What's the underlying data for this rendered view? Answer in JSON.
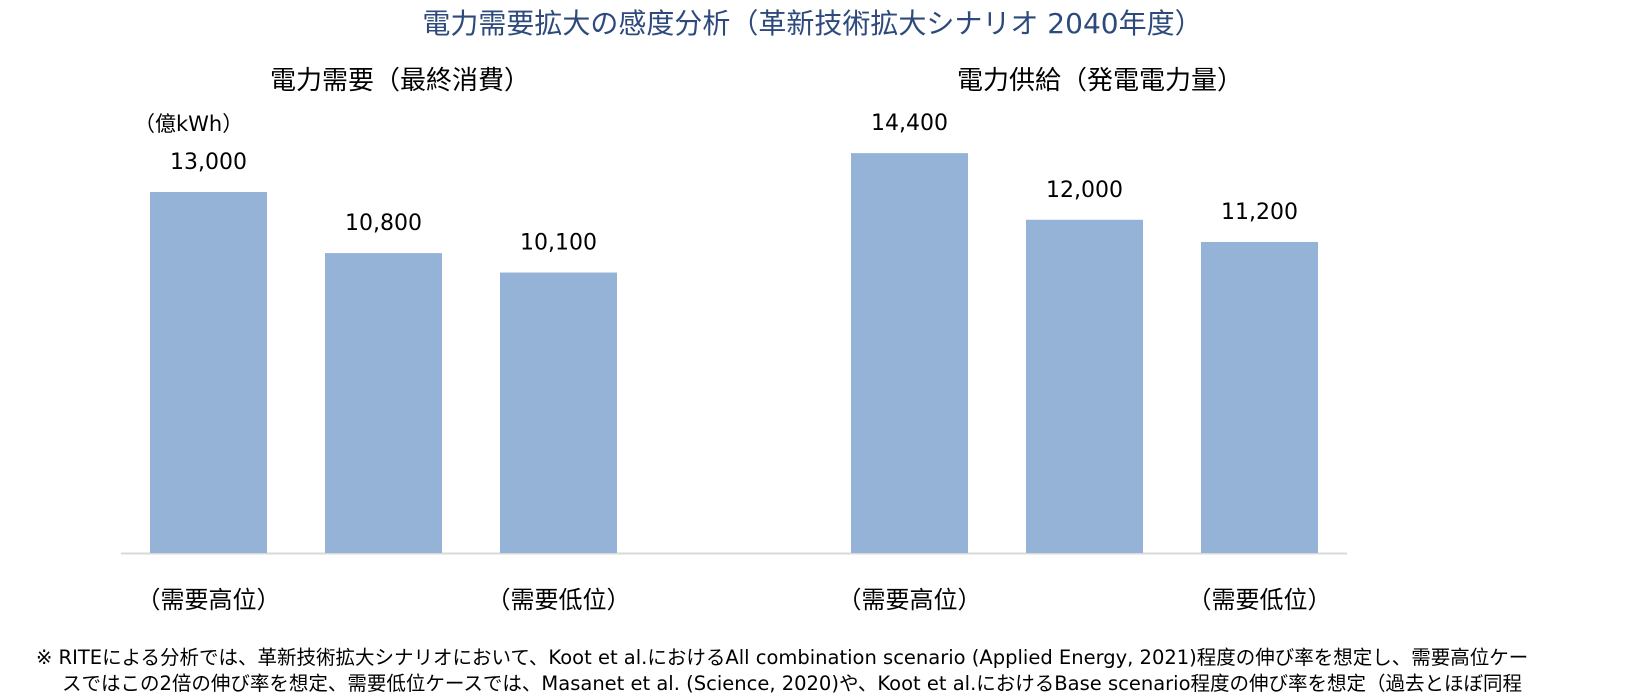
{
  "title": "電力需要拡大の感度分析（革新技術拡大シナリオ 2040年度）",
  "unit_label": "（億kWh）",
  "footnote": {
    "line1": "※ RITEによる分析では、革新技術拡大シナリオにおいて、Koot et al.におけるAll combination scenario (Applied Energy, 2021)程度の伸び率を想定し、需要高位ケー",
    "line2": "スではこの2倍の伸び率を想定、需要低位ケースでは、Masanet et al. (Science, 2020)や、Koot et al.におけるBase scenario程度の伸び率を想定（過去とほぼ同程"
  },
  "colors": {
    "bar": "#95b3d7",
    "axis": "#d9d9d9",
    "title": "#2e4a7d"
  },
  "chart_data": [
    {
      "type": "bar",
      "title": "電力需要（最終消費）",
      "ylabel": "（億kWh）",
      "categories": [
        "（需要高位）",
        "",
        "（需要低位）"
      ],
      "values": [
        13000,
        10800,
        10100
      ],
      "value_labels": [
        "13,000",
        "10,800",
        "10,100"
      ],
      "ylim": [
        0,
        15000
      ],
      "grid": false
    },
    {
      "type": "bar",
      "title": "電力供給（発電電力量）",
      "categories": [
        "（需要高位）",
        "",
        "（需要低位）"
      ],
      "values": [
        14400,
        12000,
        11200
      ],
      "value_labels": [
        "14,400",
        "12,000",
        "11,200"
      ],
      "ylim": [
        0,
        15000
      ],
      "grid": false
    }
  ]
}
